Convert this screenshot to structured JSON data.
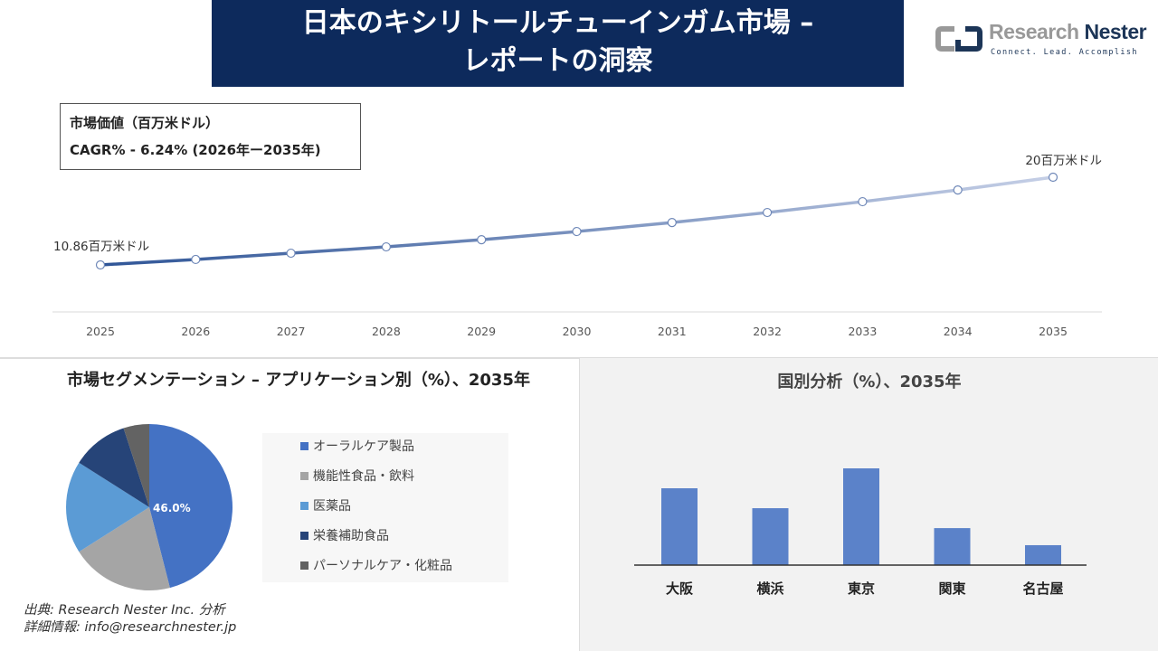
{
  "header": {
    "title_line1": "日本のキシリトールチューインガム市場 –",
    "title_line2": "レポートの洞察"
  },
  "logo": {
    "name_light": "Research",
    "name_bold": "Nester",
    "tagline": "Connect. Lead. Accomplish"
  },
  "infobox": {
    "line1": "市場価値（百万米ドル）",
    "line2": "CAGR% - 6.24% (2026年ー2035年)"
  },
  "chart_data": [
    {
      "type": "line",
      "categories": [
        "2025",
        "2026",
        "2027",
        "2028",
        "2029",
        "2030",
        "2031",
        "2032",
        "2033",
        "2034",
        "2035"
      ],
      "values": [
        10.86,
        11.43,
        12.08,
        12.74,
        13.49,
        14.34,
        15.28,
        16.32,
        17.45,
        18.67,
        20
      ],
      "data_labels": {
        "first": "10.86百万米ドル",
        "last": "20百万米ドル"
      },
      "grid": false,
      "line_color": "#3d5f9e"
    },
    {
      "type": "pie",
      "title": "市場セグメンテーション – アプリケーション別（%）、2035年",
      "categories": [
        "オーラルケア製品",
        "機能性食品・飲料",
        "医薬品",
        "栄養補助食品",
        "パーソナルケア・化粧品"
      ],
      "values": [
        46,
        20,
        18,
        11,
        5
      ],
      "colors": [
        "#4472c4",
        "#a5a5a5",
        "#5b9bd5",
        "#264478",
        "#636363"
      ],
      "data_label": "46.0%",
      "legend": "right"
    },
    {
      "type": "bar",
      "title": "国別分析（%）、2035年",
      "categories": [
        "大阪",
        "横浜",
        "東京",
        "関東",
        "名古屋"
      ],
      "values": [
        27,
        20,
        34,
        13,
        7
      ],
      "color": "#5b82c9"
    }
  ],
  "source": {
    "line1": "出典: Research Nester Inc. 分析",
    "line2": "詳細情報: info@researchnester.jp"
  }
}
